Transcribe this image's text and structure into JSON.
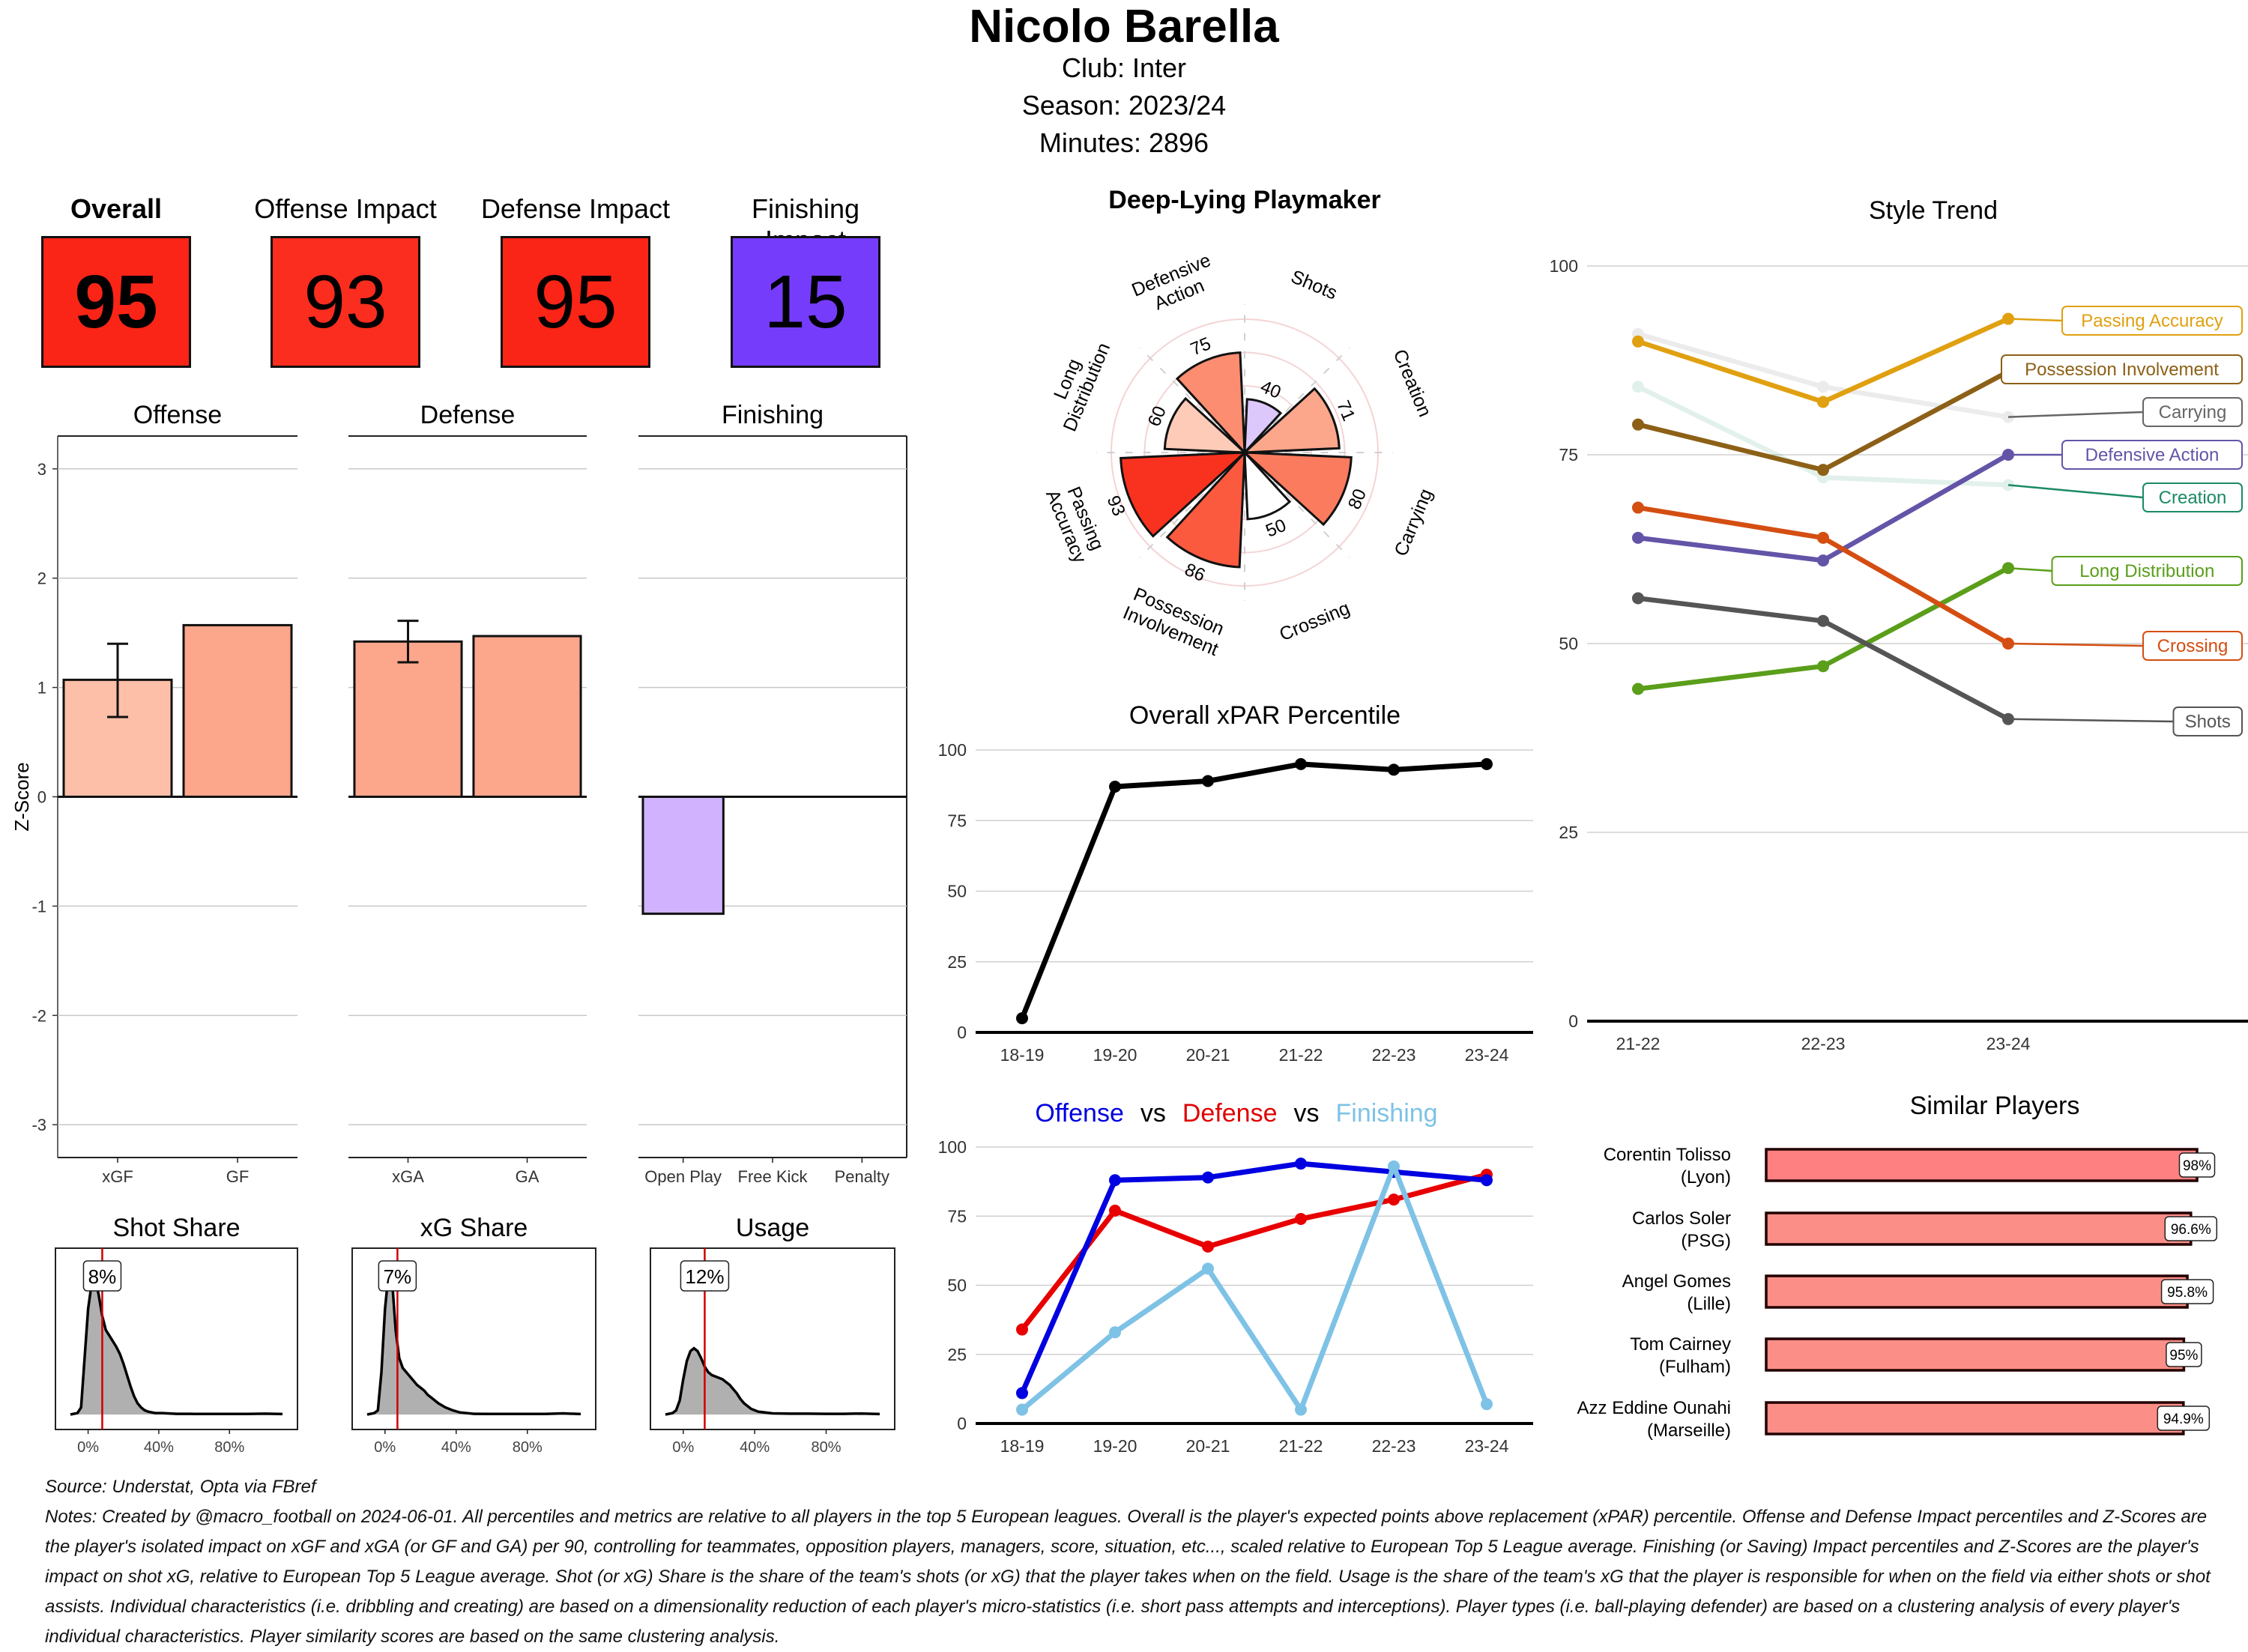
{
  "header": {
    "player_name": "Nicolo Barella",
    "club_line": "Club:  Inter",
    "season_line": "Season:  2023/24",
    "minutes_line": "Minutes:  2896"
  },
  "impact_cards": [
    {
      "label": "Overall",
      "value": "95",
      "color": "#FA2417",
      "bold": true
    },
    {
      "label": "Offense Impact",
      "value": "93",
      "color": "#FA2D1E",
      "bold": false
    },
    {
      "label": "Defense Impact",
      "value": "95",
      "color": "#FA2417",
      "bold": false
    },
    {
      "label": "Finishing Impact",
      "value": "15",
      "color": "#763CFC",
      "bold": false
    }
  ],
  "chart_data": [
    {
      "id": "zscore",
      "type": "bar",
      "ylabel": "Z-Score",
      "ylim": [
        -3.3,
        3.3
      ],
      "yticks": [
        3,
        2,
        1,
        0,
        -1,
        -2,
        -3
      ],
      "grid": true,
      "facets": [
        {
          "title": "Offense",
          "categories": [
            "xGF",
            "GF"
          ],
          "values": [
            1.07,
            1.57
          ],
          "colors": [
            "#FEBFA8",
            "#FCA68C"
          ],
          "error": [
            [
              0.73,
              1.4
            ],
            null
          ]
        },
        {
          "title": "Defense",
          "categories": [
            "xGA",
            "GA"
          ],
          "values": [
            1.42,
            1.47
          ],
          "colors": [
            "#FCA68C",
            "#FCA68C"
          ],
          "error": [
            [
              1.23,
              1.61
            ],
            null
          ]
        },
        {
          "title": "Finishing",
          "categories": [
            "Open Play",
            "Free Kick",
            "Penalty"
          ],
          "values": [
            -1.07,
            0,
            0
          ],
          "colors": [
            "#D0B2FF",
            "#D0B2FF",
            "#D0B2FF"
          ],
          "error": [
            null,
            null,
            null
          ]
        }
      ]
    },
    {
      "id": "shares",
      "type": "area",
      "xticks": [
        "0%",
        "40%",
        "80%"
      ],
      "panels": [
        {
          "title": "Shot Share",
          "value": 8,
          "label": "8%",
          "density_x": [
            -10,
            -6,
            -4,
            -2,
            0,
            2,
            4,
            6,
            8,
            10,
            12,
            14,
            16,
            18,
            20,
            22,
            24,
            26,
            28,
            30,
            32,
            34,
            38,
            42,
            50,
            60,
            70,
            80,
            90,
            100,
            110
          ],
          "density_y": [
            0,
            0.01,
            0.05,
            0.4,
            0.75,
            0.93,
            0.96,
            0.85,
            0.7,
            0.6,
            0.56,
            0.52,
            0.48,
            0.43,
            0.36,
            0.28,
            0.2,
            0.13,
            0.08,
            0.05,
            0.03,
            0.02,
            0.01,
            0.01,
            0.005,
            0.004,
            0.004,
            0.004,
            0.004,
            0.006,
            0.003
          ]
        },
        {
          "title": "xG Share",
          "value": 7,
          "label": "7%",
          "density_x": [
            -10,
            -6,
            -4,
            -2,
            0,
            2,
            4,
            6,
            8,
            10,
            12,
            14,
            16,
            18,
            20,
            22,
            24,
            26,
            28,
            30,
            34,
            38,
            42,
            50,
            60,
            70,
            80,
            90,
            100,
            110
          ],
          "density_y": [
            0,
            0.01,
            0.03,
            0.3,
            0.75,
            1.0,
            0.95,
            0.6,
            0.4,
            0.33,
            0.3,
            0.27,
            0.24,
            0.21,
            0.19,
            0.17,
            0.14,
            0.12,
            0.1,
            0.08,
            0.05,
            0.03,
            0.015,
            0.005,
            0.004,
            0.004,
            0.004,
            0.004,
            0.008,
            0.003
          ]
        },
        {
          "title": "Usage",
          "value": 12,
          "label": "12%",
          "density_x": [
            -10,
            -6,
            -4,
            -2,
            0,
            2,
            4,
            6,
            8,
            10,
            12,
            14,
            16,
            18,
            20,
            22,
            24,
            26,
            28,
            30,
            32,
            34,
            38,
            42,
            50,
            60,
            70,
            80,
            90,
            100,
            110
          ],
          "density_y": [
            0,
            0.01,
            0.03,
            0.1,
            0.25,
            0.38,
            0.45,
            0.47,
            0.45,
            0.4,
            0.34,
            0.3,
            0.28,
            0.27,
            0.26,
            0.25,
            0.23,
            0.21,
            0.18,
            0.15,
            0.11,
            0.08,
            0.04,
            0.02,
            0.008,
            0.006,
            0.006,
            0.005,
            0.005,
            0.007,
            0.003
          ]
        }
      ]
    },
    {
      "id": "radar",
      "type": "bar",
      "polar": true,
      "title": "Deep-Lying Playmaker",
      "rlim": [
        0,
        100
      ],
      "categories": [
        "Shots",
        "Creation",
        "Carrying",
        "Crossing",
        "Possession Involvement",
        "Passing Accuracy",
        "Long Distribution",
        "Defensive Action"
      ],
      "label_lines": [
        [
          "Shots"
        ],
        [
          "Creation"
        ],
        [
          "Carrying"
        ],
        [
          "Crossing"
        ],
        [
          "Possession",
          "Involvement"
        ],
        [
          "Passing",
          "Accuracy"
        ],
        [
          "Long",
          "Distribution"
        ],
        [
          "Defensive",
          "Action"
        ]
      ],
      "values": [
        40,
        71,
        80,
        50,
        86,
        93,
        60,
        75
      ],
      "colors": [
        "#DCC8FA",
        "#FCA68C",
        "#FB7B5E",
        "#FFFFFF",
        "#FB5A3F",
        "#F8321F",
        "#FDCBB8",
        "#FC8D70"
      ]
    },
    {
      "id": "xpar",
      "type": "line",
      "title": "Overall xPAR Percentile",
      "categories": [
        "18-19",
        "19-20",
        "20-21",
        "21-22",
        "22-23",
        "23-24"
      ],
      "series": [
        {
          "name": "Overall xPAR Percentile",
          "color": "#000000",
          "values": [
            5,
            87,
            89,
            95,
            93,
            95
          ]
        }
      ],
      "ylim": [
        0,
        100
      ],
      "yticks": [
        0,
        25,
        50,
        75,
        100
      ],
      "grid": true
    },
    {
      "id": "odf",
      "type": "line",
      "title_parts": [
        {
          "text": "Offense",
          "color": "#0000E0"
        },
        {
          "text": "vs",
          "color": "#000000"
        },
        {
          "text": "Defense",
          "color": "#E00000"
        },
        {
          "text": "vs",
          "color": "#000000"
        },
        {
          "text": "Finishing",
          "color": "#7EC2E6"
        }
      ],
      "categories": [
        "18-19",
        "19-20",
        "20-21",
        "21-22",
        "22-23",
        "23-24"
      ],
      "series": [
        {
          "name": "Defense",
          "color": "#E80000",
          "values": [
            34,
            77,
            64,
            74,
            81,
            90
          ]
        },
        {
          "name": "Offense",
          "color": "#0000E0",
          "values": [
            11,
            88,
            89,
            94,
            91,
            88
          ]
        },
        {
          "name": "Finishing",
          "color": "#7EC2E6",
          "values": [
            5,
            33,
            56,
            5,
            93,
            7
          ]
        }
      ],
      "ylim": [
        0,
        100
      ],
      "yticks": [
        0,
        25,
        50,
        75,
        100
      ],
      "grid": true
    },
    {
      "id": "style",
      "type": "line",
      "title": "Style Trend",
      "categories": [
        "21-22",
        "22-23",
        "23-24"
      ],
      "series": [
        {
          "name": "Carrying",
          "color": "#666666",
          "faded": true,
          "values": [
            91,
            84,
            80
          ]
        },
        {
          "name": "Creation",
          "color": "#1B8A66",
          "faded": true,
          "values": [
            84,
            72,
            71
          ]
        },
        {
          "name": "Passing Accuracy",
          "color": "#E0A010",
          "faded": false,
          "values": [
            90,
            82,
            93
          ]
        },
        {
          "name": "Possession Involvement",
          "color": "#8C6016",
          "faded": false,
          "values": [
            79,
            73,
            86
          ]
        },
        {
          "name": "Defensive Action",
          "color": "#6454A8",
          "faded": false,
          "values": [
            64,
            61,
            75
          ]
        },
        {
          "name": "Long Distribution",
          "color": "#5A9E1A",
          "faded": false,
          "values": [
            44,
            47,
            60
          ]
        },
        {
          "name": "Crossing",
          "color": "#D44E12",
          "faded": false,
          "values": [
            68,
            64,
            50
          ]
        },
        {
          "name": "Shots",
          "color": "#555555",
          "faded": false,
          "values": [
            56,
            53,
            40
          ]
        }
      ],
      "ylim": [
        0,
        100
      ],
      "yticks": [
        0,
        25,
        50,
        75,
        100
      ],
      "grid": true
    },
    {
      "id": "similar",
      "type": "bar",
      "orientation": "horizontal",
      "title": "Similar Players",
      "categories": [
        "Corentin Tolisso (Lyon)",
        "Carlos Soler (PSG)",
        "Angel Gomes (Lille)",
        "Tom Cairney (Fulham)",
        "Azz Eddine Ounahi (Marseille)"
      ],
      "name_lines": [
        [
          "Corentin Tolisso",
          "(Lyon)"
        ],
        [
          "Carlos Soler",
          "(PSG)"
        ],
        [
          "Angel Gomes",
          "(Lille)"
        ],
        [
          "Tom Cairney",
          "(Fulham)"
        ],
        [
          "Azz Eddine Ounahi",
          "(Marseille)"
        ]
      ],
      "values": [
        98,
        96.6,
        95.8,
        95,
        94.9
      ],
      "labels": [
        "98%",
        "96.6%",
        "95.8%",
        "95%",
        "94.9%"
      ],
      "colors": [
        "#FF8080",
        "#FC8E88",
        "#FC8E88",
        "#FC8E88",
        "#FC8E88"
      ],
      "xlim": [
        0,
        100
      ]
    }
  ],
  "footer": {
    "source": "Source: Understat, Opta via FBref",
    "notes": "Notes: Created by @macro_football on 2024-06-01. All percentiles and metrics are relative to all players in the top 5 European leagues. Overall is the player's expected points above replacement (xPAR) percentile. Offense and Defense Impact percentiles and Z-Scores are the player's isolated impact on xGF and xGA (or GF and GA) per 90, controlling for teammates, opposition players, managers, score, situation, etc..., scaled relative to European Top 5 League average. Finishing (or Saving) Impact percentiles and Z-Scores are the player's impact on shot xG, relative to European Top 5 League average. Shot (or xG) Share is the share of the team's shots (or xG) that the player takes when on the field. Usage is the share of the team's xG that the player is responsible for when on the field via either shots or shot assists. Individual characteristics (i.e. dribbling and creating) are based on a dimensionality reduction of each player's micro-statistics (i.e. short pass attempts and interceptions). Player types (i.e. ball-playing defender) are based on a clustering analysis of every player's individual characteristics. Player similarity scores are based on the same clustering analysis."
  }
}
